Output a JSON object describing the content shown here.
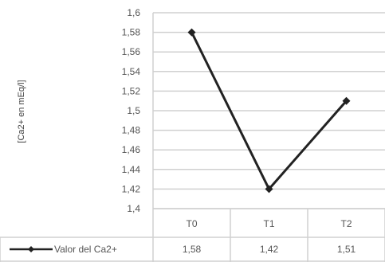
{
  "chart_data": {
    "type": "line",
    "ylabel": "[Ca2+ en mEq/l]",
    "ylim": [
      1.4,
      1.6
    ],
    "y_tick_labels": [
      "1,4",
      "1,42",
      "1,44",
      "1,46",
      "1,48",
      "1,5",
      "1,52",
      "1,54",
      "1,56",
      "1,58",
      "1,6"
    ],
    "categories": [
      "T0",
      "T1",
      "T2"
    ],
    "series": [
      {
        "name": "Valor del Ca2+",
        "values": [
          1.58,
          1.42,
          1.51
        ],
        "value_labels": [
          "1,58",
          "1,42",
          "1,51"
        ]
      }
    ],
    "grid": true,
    "legend": "data-table-bottom",
    "colors": {
      "line": "#222222",
      "grid": "#d0d0d0",
      "text": "#555555"
    }
  }
}
